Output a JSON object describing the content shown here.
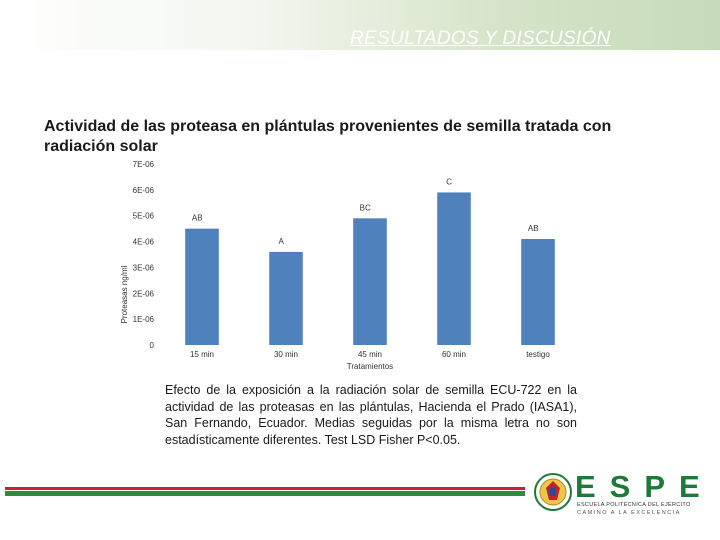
{
  "header": {
    "title": "RESULTADOS Y DISCUSIÓN"
  },
  "chart_data": {
    "type": "bar",
    "title": "Actividad de las proteasa en plántulas provenientes de semilla tratada con radiación solar",
    "xlabel": "Tratamientos",
    "ylabel": "Proteasas ng/ml",
    "categories": [
      "15 min",
      "30 min",
      "45 min",
      "60 min",
      "testigo"
    ],
    "values": [
      4.5e-06,
      3.6e-06,
      4.9e-06,
      5.9e-06,
      4.1e-06
    ],
    "letters": [
      "AB",
      "A",
      "BC",
      "C",
      "AB"
    ],
    "ylim": [
      0,
      7e-06
    ],
    "yticks": [
      0,
      1e-06,
      2e-06,
      3e-06,
      4e-06,
      5e-06,
      6e-06,
      7e-06
    ],
    "ytick_labels": [
      "0",
      "1E-06",
      "2E-06",
      "3E-06",
      "4E-06",
      "5E-06",
      "6E-06",
      "7E-06"
    ],
    "grid": false,
    "legend": "none",
    "bar_color": "#4f81bd"
  },
  "caption": "Efecto de la exposición a la radiación solar de semilla ECU-722 en la actividad de las proteasas en las plántulas, Hacienda el Prado (IASA1), San Fernando, Ecuador. Medias seguidas por la misma letra no son estadísticamente diferentes. Test LSD Fisher P<0.05.",
  "footer": {
    "logo_text": "ESPE",
    "institution": "ESCUELA POLITÉCNICA DEL EJÉRCITO",
    "motto": "CAMINO A LA EXCELENCIA"
  }
}
